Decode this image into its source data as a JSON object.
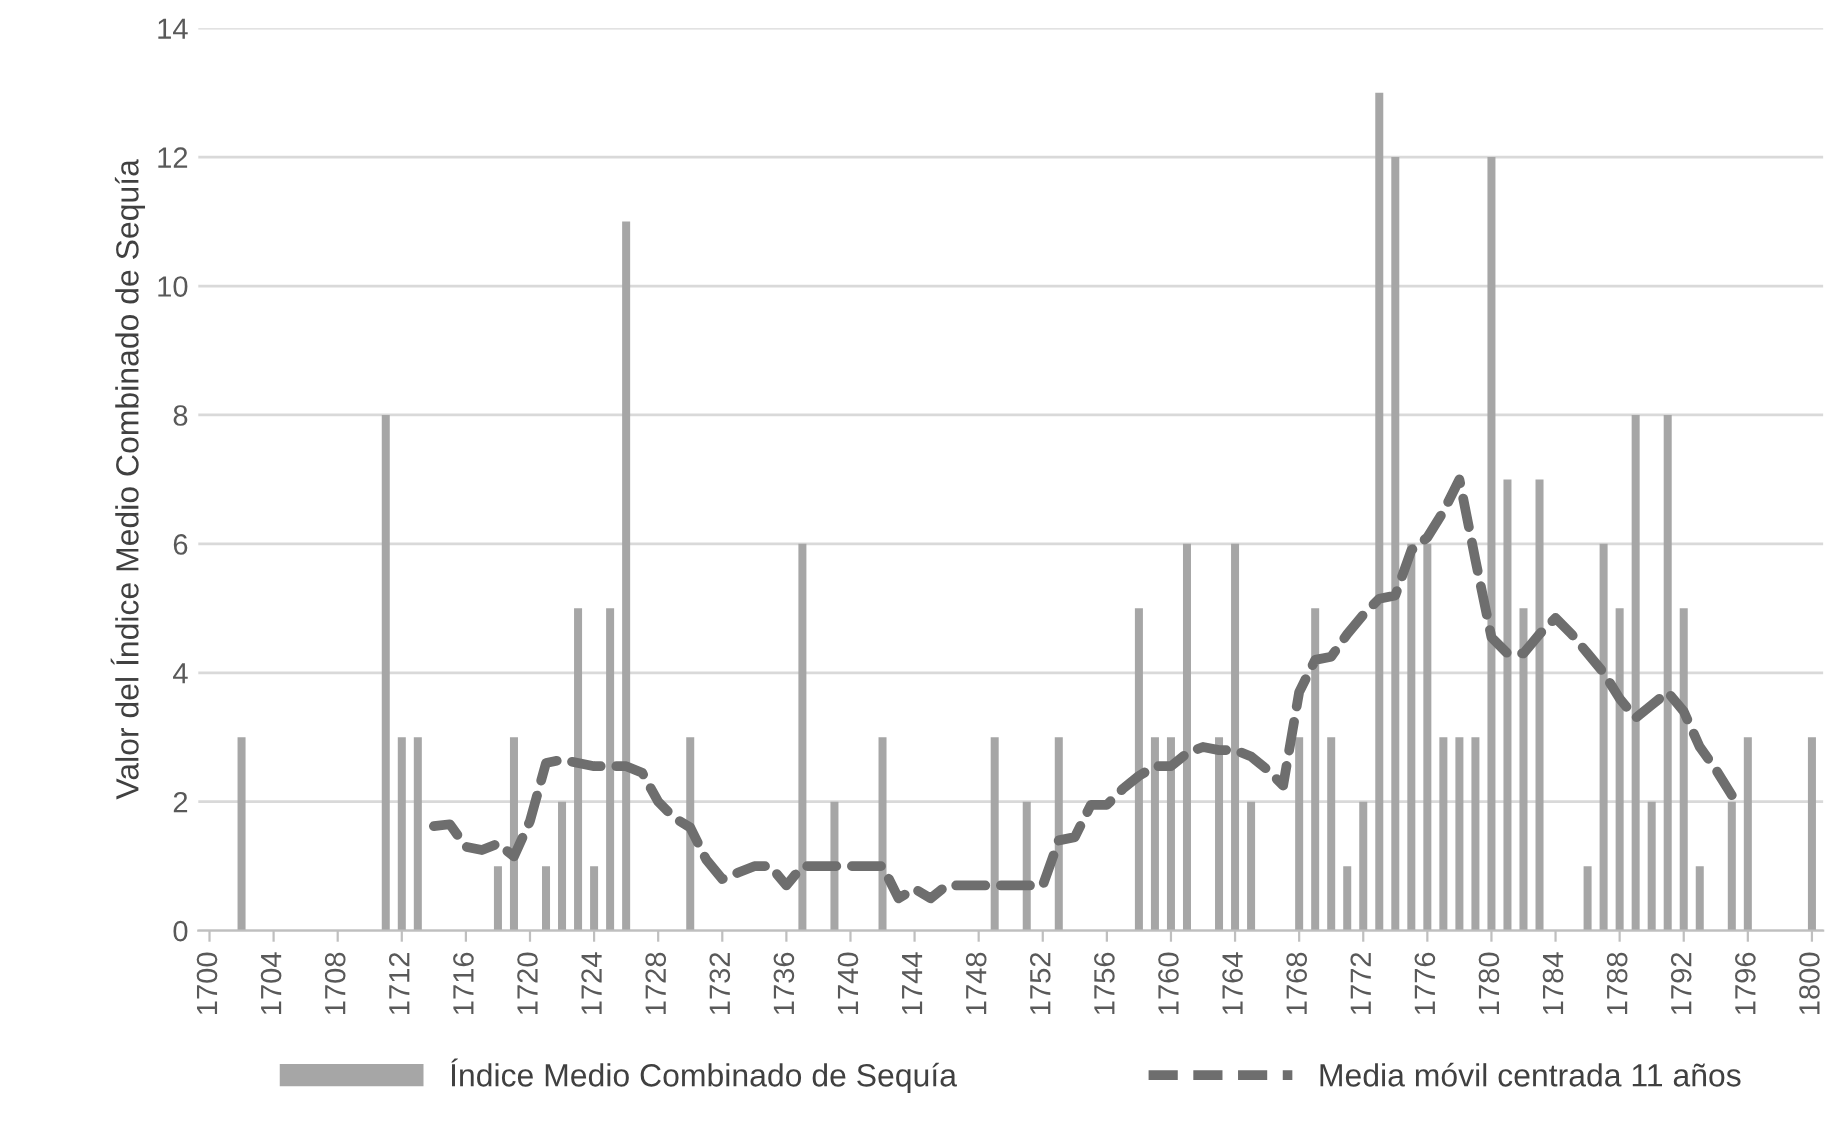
{
  "chart_data": {
    "type": "bar",
    "ylabel": "Valor del Índice Medio Combinado de Sequía",
    "categories": [
      "1700",
      null,
      null,
      null,
      "1704",
      null,
      null,
      null,
      "1708",
      null,
      null,
      null,
      "1712",
      null,
      null,
      null,
      "1716",
      null,
      null,
      null,
      "1720",
      null,
      null,
      null,
      "1724",
      null,
      null,
      null,
      "1728",
      null,
      null,
      null,
      "1732",
      null,
      null,
      null,
      "1736",
      null,
      null,
      null,
      "1740",
      null,
      null,
      null,
      "1744",
      null,
      null,
      null,
      "1748",
      null,
      null,
      null,
      "1752",
      null,
      null,
      null,
      "1756",
      null,
      null,
      null,
      "1760",
      null,
      null,
      null,
      "1764",
      null,
      null,
      null,
      "1768",
      null,
      null,
      null,
      "1772",
      null,
      null,
      null,
      "1776",
      null,
      null,
      null,
      "1780",
      null,
      null,
      null,
      "1784",
      null,
      null,
      null,
      "1788",
      null,
      null,
      null,
      "1792",
      null,
      null,
      null,
      "1796",
      null,
      null,
      null,
      "1800"
    ],
    "series": [
      {
        "name": "Índice Medio Combinado de Sequía",
        "color": "#a6a6a6",
        "values": [
          0,
          0,
          3,
          0,
          0,
          0,
          0,
          0,
          0,
          0,
          0,
          8,
          3,
          3,
          0,
          0,
          0,
          0,
          1,
          3,
          0,
          1,
          2,
          5,
          1,
          5,
          11,
          0,
          0,
          0,
          3,
          0,
          0,
          0,
          0,
          0,
          0,
          6,
          0,
          2,
          0,
          0,
          3,
          0,
          0,
          0,
          0,
          0,
          0,
          3,
          0,
          2,
          0,
          3,
          0,
          0,
          0,
          0,
          5,
          3,
          3,
          6,
          0,
          3,
          6,
          2,
          0,
          0,
          3,
          5,
          3,
          1,
          2,
          13,
          12,
          6,
          6,
          3,
          3,
          3,
          12,
          7,
          5,
          7,
          0,
          0,
          1,
          6,
          5,
          8,
          2,
          8,
          5,
          1,
          0,
          2,
          3,
          0,
          0,
          0,
          3
        ]
      },
      {
        "name": "Media móvil centrada 11 años",
        "type": "line",
        "color": "#6e6e6e",
        "line_style": "dashed",
        "marker": "none",
        "values": [
          null,
          null,
          null,
          null,
          null,
          null,
          null,
          null,
          null,
          null,
          null,
          null,
          null,
          null,
          1.62,
          1.65,
          1.3,
          1.25,
          1.35,
          1.15,
          1.7,
          2.6,
          2.65,
          2.6,
          2.55,
          2.55,
          2.55,
          2.45,
          2.0,
          1.75,
          1.6,
          1.1,
          0.8,
          0.9,
          1.0,
          1.0,
          0.7,
          1.0,
          1.0,
          1.0,
          1.0,
          1.0,
          1.0,
          0.5,
          0.65,
          0.5,
          0.7,
          0.7,
          0.7,
          0.7,
          0.7,
          0.7,
          0.7,
          1.4,
          1.45,
          1.95,
          1.95,
          2.2,
          2.4,
          2.55,
          2.55,
          2.75,
          2.85,
          2.8,
          2.8,
          2.7,
          2.5,
          2.25,
          3.7,
          4.2,
          4.25,
          4.6,
          4.9,
          5.15,
          5.2,
          5.9,
          6.1,
          6.5,
          7.0,
          5.75,
          4.55,
          4.3,
          4.3,
          4.6,
          4.85,
          4.6,
          4.3,
          4.0,
          3.6,
          3.3,
          3.5,
          3.7,
          3.4,
          2.85,
          2.5,
          2.1,
          null,
          null,
          null,
          null,
          null
        ]
      }
    ],
    "ylim": [
      0,
      14
    ],
    "yticks": [
      0,
      2,
      4,
      6,
      8,
      10,
      12,
      14
    ],
    "grid": "y",
    "legend": "bottom"
  }
}
